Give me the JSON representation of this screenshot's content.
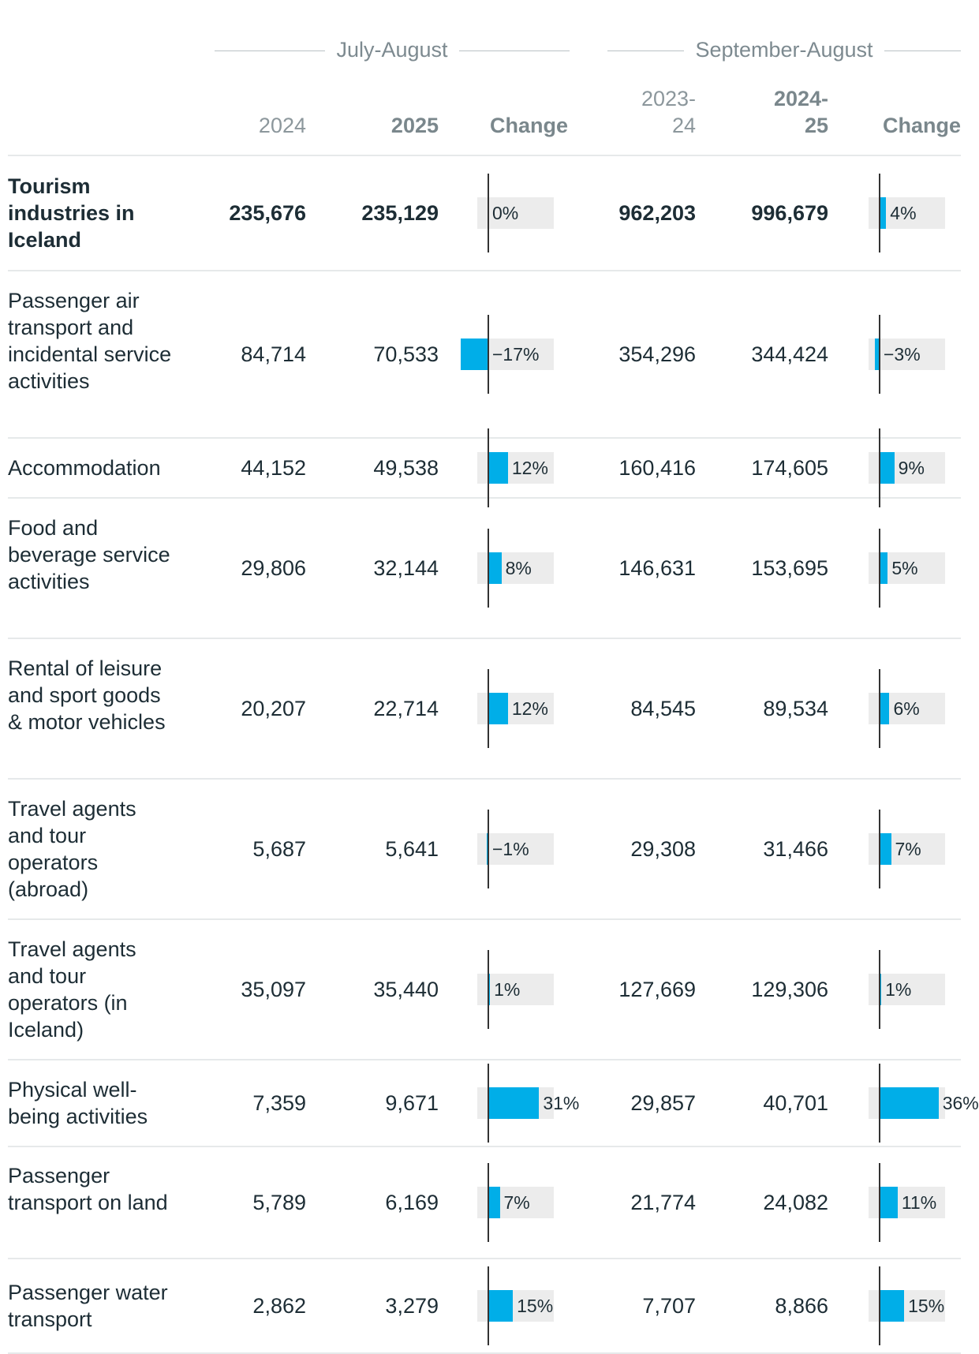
{
  "chart_data": {
    "type": "table",
    "groups": [
      {
        "name": "July-August",
        "columns": [
          "2024",
          "2025",
          "Change"
        ]
      },
      {
        "name": "September-August",
        "columns": [
          "2023-\n24",
          "2024-\n25",
          "Change"
        ]
      }
    ],
    "headers": {
      "ja_2024": "2024",
      "ja_2025": "2025",
      "ja_change": "Change",
      "sa_prev_1": "2023-",
      "sa_prev_2": "24",
      "sa_curr_1": "2024-",
      "sa_curr_2": "25",
      "sa_change": "Change"
    },
    "rows": [
      {
        "label": "Tourism industries in Iceland",
        "total": true,
        "ja_2024": "235,676",
        "ja_2025": "235,129",
        "ja_change": 0,
        "ja_change_label": "0%",
        "sa_prev": "962,203",
        "sa_curr": "996,679",
        "sa_change": 4,
        "sa_change_label": "4%"
      },
      {
        "label": "Passenger air transport and incidental service activities",
        "total": false,
        "ja_2024": "84,714",
        "ja_2025": "70,533",
        "ja_change": -17,
        "ja_change_label": "−17%",
        "sa_prev": "354,296",
        "sa_curr": "344,424",
        "sa_change": -3,
        "sa_change_label": "−3%"
      },
      {
        "label": "Accommodation",
        "total": false,
        "ja_2024": "44,152",
        "ja_2025": "49,538",
        "ja_change": 12,
        "ja_change_label": "12%",
        "sa_prev": "160,416",
        "sa_curr": "174,605",
        "sa_change": 9,
        "sa_change_label": "9%"
      },
      {
        "label": "Food and beverage service activities",
        "total": false,
        "ja_2024": "29,806",
        "ja_2025": "32,144",
        "ja_change": 8,
        "ja_change_label": "8%",
        "sa_prev": "146,631",
        "sa_curr": "153,695",
        "sa_change": 5,
        "sa_change_label": "5%"
      },
      {
        "label": "Rental of leisure and sport goods & motor vehicles",
        "total": false,
        "ja_2024": "20,207",
        "ja_2025": "22,714",
        "ja_change": 12,
        "ja_change_label": "12%",
        "sa_prev": "84,545",
        "sa_curr": "89,534",
        "sa_change": 6,
        "sa_change_label": "6%"
      },
      {
        "label": "Travel agents and tour operators (abroad)",
        "total": false,
        "ja_2024": "5,687",
        "ja_2025": "5,641",
        "ja_change": -1,
        "ja_change_label": "−1%",
        "sa_prev": "29,308",
        "sa_curr": "31,466",
        "sa_change": 7,
        "sa_change_label": "7%"
      },
      {
        "label": "Travel agents and tour operators (in Iceland)",
        "total": false,
        "ja_2024": "35,097",
        "ja_2025": "35,440",
        "ja_change": 1,
        "ja_change_label": "1%",
        "sa_prev": "127,669",
        "sa_curr": "129,306",
        "sa_change": 1,
        "sa_change_label": "1%"
      },
      {
        "label": "Physical well-being activities",
        "total": false,
        "ja_2024": "7,359",
        "ja_2025": "9,671",
        "ja_change": 31,
        "ja_change_label": "31%",
        "sa_prev": "29,857",
        "sa_curr": "40,701",
        "sa_change": 36,
        "sa_change_label": "36%"
      },
      {
        "label": "Passenger transport on land",
        "total": false,
        "ja_2024": "5,789",
        "ja_2025": "6,169",
        "ja_change": 7,
        "ja_change_label": "7%",
        "sa_prev": "21,774",
        "sa_curr": "24,082",
        "sa_change": 11,
        "sa_change_label": "11%"
      },
      {
        "label": "Passenger water transport",
        "total": false,
        "ja_2024": "2,862",
        "ja_2025": "3,279",
        "ja_change": 15,
        "ja_change_label": "15%",
        "sa_prev": "7,707",
        "sa_curr": "8,866",
        "sa_change": 15,
        "sa_change_label": "15%"
      }
    ],
    "bar_color": "#00aee8",
    "bar_bg_color": "#ececec"
  }
}
